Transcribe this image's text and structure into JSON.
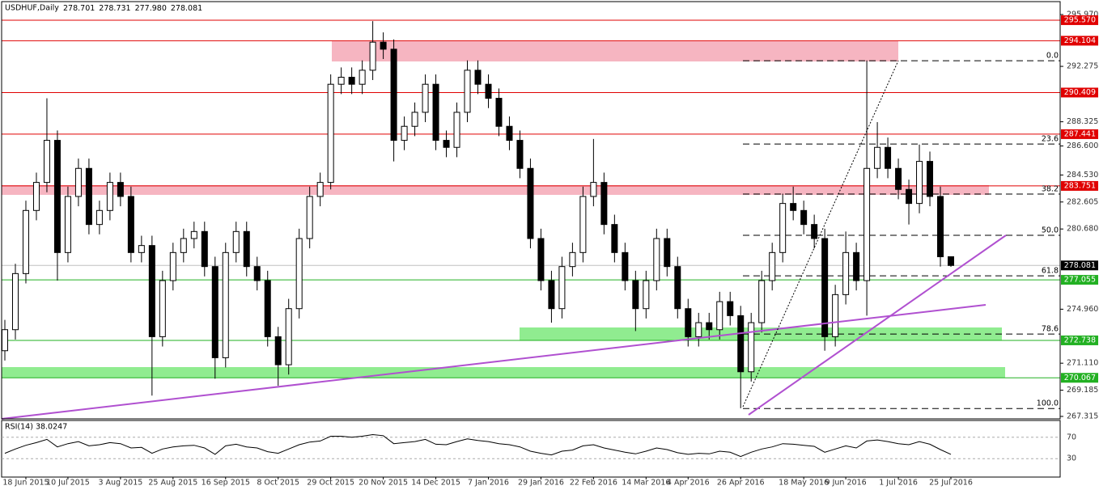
{
  "chart_data": {
    "type": "candlestick",
    "title": "USDHUF,Daily",
    "header_ohlc": [
      "278.701",
      "278.731",
      "277.980",
      "278.081"
    ],
    "categories": [
      null,
      null,
      "18 Jun 2015",
      null,
      null,
      null,
      "10 Jul 2015",
      null,
      null,
      null,
      null,
      "3 Aug 2015",
      null,
      null,
      null,
      null,
      "25 Aug 2015",
      null,
      null,
      null,
      null,
      "16 Sep 2015",
      null,
      null,
      null,
      null,
      "8 Oct 2015",
      null,
      null,
      null,
      null,
      "29 Oct 2015",
      null,
      null,
      null,
      null,
      "20 Nov 2015",
      null,
      null,
      null,
      null,
      "14 Dec 2015",
      null,
      null,
      null,
      null,
      "7 Jan 2016",
      null,
      null,
      null,
      null,
      "29 Jan 2016",
      null,
      null,
      null,
      null,
      "22 Feb 2016",
      null,
      null,
      null,
      null,
      "14 Mar 2016",
      null,
      null,
      null,
      "4 Apr 2016",
      null,
      null,
      null,
      null,
      "26 Apr 2016",
      null,
      null,
      null,
      null,
      null,
      "18 May 2016",
      null,
      null,
      null,
      "9 Jun 2016",
      null,
      null,
      null,
      null,
      "1 Jul 2016",
      null,
      null,
      null,
      null,
      "25 Jul 2016"
    ],
    "open": [
      272,
      273.5,
      277.5,
      282,
      284,
      287,
      279,
      283,
      285,
      281,
      282,
      284,
      283,
      279,
      279.5,
      273,
      277,
      279,
      280,
      280.5,
      278,
      271.5,
      279,
      280.5,
      278,
      277,
      273,
      271,
      275,
      280,
      283,
      284,
      291,
      291.5,
      291,
      292,
      294,
      293.5,
      287,
      288,
      289,
      291,
      287,
      286.5,
      289,
      292,
      291,
      290,
      288,
      287,
      285,
      280,
      277,
      275,
      278,
      279,
      283,
      284,
      281,
      279,
      277,
      275,
      277,
      280,
      278,
      275,
      273,
      274,
      273.5,
      275.5,
      274.5,
      270.5,
      274,
      277,
      279,
      282.5,
      282,
      281,
      280,
      273,
      276,
      279,
      277,
      285,
      286.5,
      285,
      283.5,
      282.5,
      285.5,
      283,
      278.701
    ],
    "high": [
      274.2,
      278.2,
      282.7,
      284.7,
      290,
      287.7,
      283.7,
      285.7,
      285.7,
      282.7,
      284.7,
      284.7,
      283.7,
      280.2,
      280.2,
      277.7,
      279.7,
      280.7,
      281.2,
      281.2,
      278.7,
      279.7,
      281.2,
      281.2,
      278.7,
      277.7,
      273.7,
      275.7,
      280.7,
      283.7,
      284.7,
      291.7,
      292.2,
      292.2,
      292.7,
      295.5,
      294.7,
      294.2,
      288.7,
      289.7,
      291.7,
      291.7,
      287.7,
      289.7,
      292.7,
      292.7,
      291.7,
      290.7,
      288.7,
      287.7,
      285.7,
      280.7,
      277.7,
      278.7,
      279.7,
      283.7,
      287.1,
      284.7,
      281.7,
      279.7,
      277.7,
      277.7,
      280.7,
      280.7,
      278.7,
      275.7,
      274.7,
      274.7,
      276.2,
      276.2,
      275.2,
      274.7,
      277.7,
      279.7,
      283.2,
      283.7,
      282.7,
      281.7,
      280.7,
      276.7,
      280.5,
      279.7,
      292.7,
      288.3,
      287.2,
      285.7,
      284.2,
      286.7,
      286.2,
      283.7,
      278.731
    ],
    "low": [
      271.3,
      272.8,
      276.8,
      281.3,
      283.3,
      277,
      278.3,
      282.3,
      280.3,
      280.3,
      281.3,
      282.3,
      278.3,
      278.3,
      268.8,
      272.3,
      276.3,
      278.3,
      279.3,
      277.3,
      270,
      270.8,
      278.3,
      277.3,
      276.3,
      272.3,
      269.5,
      270.3,
      274.3,
      279.3,
      282.3,
      283.5,
      290.3,
      290.3,
      290.3,
      291.3,
      292.8,
      285.5,
      286.3,
      287.3,
      288.3,
      286.3,
      285.8,
      285.8,
      288.3,
      290.3,
      289.3,
      287.3,
      286.3,
      284.3,
      279.3,
      276.3,
      274,
      274.3,
      277.3,
      278.3,
      282.3,
      280.3,
      278.3,
      276.3,
      273.4,
      274.3,
      276.3,
      277.3,
      274.3,
      272.3,
      272.3,
      272.8,
      272.8,
      273.8,
      267.9,
      269.8,
      273.3,
      276.3,
      278.3,
      281.3,
      280.3,
      279.3,
      272,
      272.3,
      275.3,
      276.3,
      274.5,
      284.3,
      284.3,
      282.8,
      281,
      281.8,
      282.3,
      278,
      277.98
    ],
    "close": [
      273.5,
      277.5,
      282,
      284,
      287,
      279,
      283,
      285,
      281,
      282,
      284,
      283,
      279,
      279.5,
      273,
      277,
      279,
      280,
      280.5,
      278,
      271.5,
      279,
      280.5,
      278,
      277,
      273,
      271,
      275,
      280,
      283,
      284,
      291,
      291.5,
      291,
      292,
      294,
      293.5,
      287,
      288,
      289,
      291,
      287,
      286.5,
      289,
      292,
      291,
      290,
      288,
      287,
      285,
      280,
      277,
      275,
      278,
      279,
      283,
      284,
      281,
      279,
      277,
      275,
      277,
      280,
      278,
      275,
      273,
      274,
      273.5,
      275.5,
      274.5,
      270.5,
      274,
      277,
      279,
      282.5,
      282,
      281,
      280,
      273,
      276,
      279,
      277,
      285,
      286.5,
      285,
      283.5,
      282.5,
      285.5,
      283,
      278.7,
      278.081
    ],
    "up_color": "#ffffff",
    "down_color": "#000000",
    "ylim": [
      267.315,
      295.97
    ],
    "yticks": [
      {
        "value": 295.97,
        "label": "295.970"
      },
      292.275,
      288.325,
      {
        "value": 286.6,
        "label": "286.600"
      },
      {
        "value": 284.53,
        "label": "284.530"
      },
      282.605,
      {
        "value": 280.68,
        "label": "280.680"
      },
      {
        "value": 274.96,
        "label": "274.960"
      },
      {
        "value": 271.11,
        "label": "271.110"
      },
      269.185,
      267.315
    ],
    "bid": {
      "value": 278.081,
      "label": "278.081"
    },
    "levels": [
      {
        "value": 295.57,
        "label": "295.570",
        "color": "#e00000"
      },
      {
        "value": 294.104,
        "label": "294.104",
        "color": "#e00000"
      },
      {
        "value": 290.409,
        "label": "290.409",
        "color": "#e00000"
      },
      {
        "value": 287.441,
        "label": "287.441",
        "color": "#e00000"
      },
      {
        "value": 283.751,
        "label": "283.751",
        "color": "#e00000"
      },
      {
        "value": 277.055,
        "label": "277.055",
        "color": "#22b022"
      },
      {
        "value": 272.738,
        "label": "272.738",
        "color": "#22b022"
      },
      {
        "value": 270.067,
        "label": "270.067",
        "color": "#22b022"
      }
    ],
    "fibonacci": [
      {
        "name": "0.0",
        "price": 292.68
      },
      {
        "name": "23.6",
        "price": 286.74
      },
      {
        "name": "38.2",
        "price": 283.17
      },
      {
        "name": "50.0",
        "price": 280.23
      },
      {
        "name": "61.8",
        "price": 277.34
      },
      {
        "name": "78.6",
        "price": 273.19
      },
      {
        "name": "100.0",
        "price": 267.88
      }
    ],
    "rsi": {
      "title": "RSI(14) 38.0247",
      "values": [
        40,
        48,
        55,
        60,
        66,
        52,
        58,
        62,
        54,
        56,
        60,
        58,
        50,
        51,
        40,
        48,
        52,
        54,
        55,
        50,
        38,
        54,
        57,
        52,
        50,
        43,
        40,
        48,
        56,
        61,
        63,
        72,
        72,
        70,
        72,
        75,
        73,
        58,
        60,
        62,
        66,
        57,
        56,
        62,
        67,
        64,
        62,
        58,
        56,
        52,
        44,
        40,
        37,
        44,
        46,
        54,
        56,
        50,
        46,
        42,
        39,
        44,
        50,
        47,
        41,
        38,
        40,
        39,
        44,
        42,
        34,
        42,
        48,
        52,
        58,
        57,
        55,
        53,
        42,
        48,
        54,
        50,
        63,
        65,
        62,
        58,
        56,
        62,
        57,
        47,
        38.0247
      ],
      "ylim": [
        0,
        100
      ],
      "yticks": [
        70,
        30
      ]
    }
  }
}
